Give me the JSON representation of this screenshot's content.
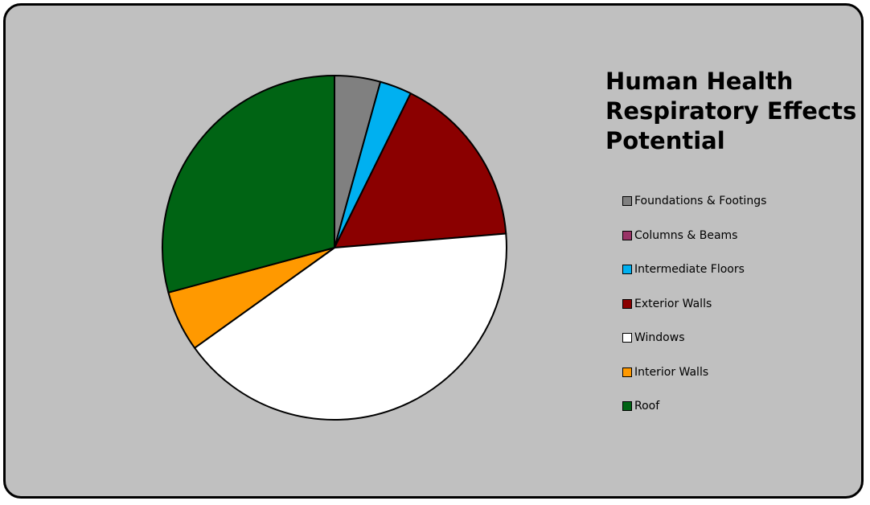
{
  "chart_data": {
    "type": "pie",
    "title": "Human Health Respiratory Effects Potential",
    "legend_position": "right",
    "slices": [
      {
        "label": "Foundations & Footings",
        "value": 4.3,
        "color": "#808080"
      },
      {
        "label": "Columns & Beams",
        "value": 0.0,
        "color": "#993366"
      },
      {
        "label": "Intermediate Floors",
        "value": 3.0,
        "color": "#00b0f0"
      },
      {
        "label": "Exterior Walls",
        "value": 16.4,
        "color": "#8b0000"
      },
      {
        "label": "Windows",
        "value": 41.4,
        "color": "#ffffff"
      },
      {
        "label": "Interior Walls",
        "value": 5.7,
        "color": "#ff9900"
      },
      {
        "label": "Roof",
        "value": 29.2,
        "color": "#006414"
      }
    ]
  }
}
